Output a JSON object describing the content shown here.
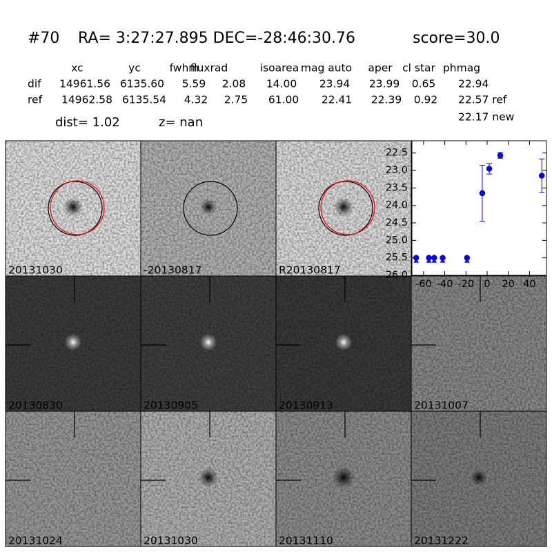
{
  "header": {
    "object_id": "#70",
    "coords": "RA= 3:27:27.895 DEC=-28:46:30.76",
    "score": "score=30.0"
  },
  "table": {
    "columns": [
      "xc",
      "yc",
      "fwhm",
      "fluxrad",
      "isoarea",
      "mag auto",
      "aper",
      "cl star",
      "phmag"
    ],
    "rows": [
      [
        "dif",
        "14961.56",
        "6135.60",
        "5.59",
        "2.08",
        "14.00",
        "23.94",
        "23.99",
        "0.65",
        "22.94"
      ],
      [
        "ref",
        "14962.58",
        "6135.54",
        "4.32",
        "2.75",
        "61.00",
        "22.41",
        "22.39",
        "0.92",
        "22.57 ref"
      ]
    ],
    "extra": "22.17 new"
  },
  "dist": "dist=  1.02",
  "z": "z=   nan",
  "panels": [
    {
      "label": "20131030",
      "color": "#000000"
    },
    {
      "label": "-20130817",
      "color": "#000000"
    },
    {
      "label": "R20130817",
      "color": "#000000"
    },
    {
      "label": "20130830",
      "color": "#000000"
    },
    {
      "label": "20130905",
      "color": "#000000"
    },
    {
      "label": "20130913",
      "color": "#000000"
    },
    {
      "label": "20131007",
      "color": "#000000"
    },
    {
      "label": "20131024",
      "color": "#000000"
    },
    {
      "label": "20131030",
      "color": "#ff0000"
    },
    {
      "label": "20131110",
      "color": "#000000"
    },
    {
      "label": "20131222",
      "color": "#000000"
    }
  ],
  "chart_data": {
    "type": "scatter",
    "color": "#0000ff",
    "x": [
      -67,
      -55,
      -50,
      -42,
      -19,
      -4.6,
      2,
      12.4,
      51.6
    ],
    "values": [
      25.5,
      25.5,
      25.5,
      25.5,
      25.5,
      23.65,
      22.95,
      22.57,
      23.15
    ],
    "errors": [
      null,
      null,
      null,
      null,
      null,
      0.8,
      0.15,
      0.08,
      0.48
    ],
    "xlim": [
      -71,
      56
    ],
    "ylim": [
      26.0,
      22.15
    ],
    "xticks": [
      -60,
      -40,
      -20,
      0,
      20,
      40
    ],
    "yticks": [
      22.5,
      {
        "value": 23.0,
        "label": "23.0"
      },
      23.5,
      {
        "value": 24.0,
        "label": "24.0"
      },
      24.5,
      {
        "value": 25.0,
        "label": "25.0"
      },
      25.5,
      {
        "value": 26.0,
        "label": "26.0"
      }
    ]
  }
}
